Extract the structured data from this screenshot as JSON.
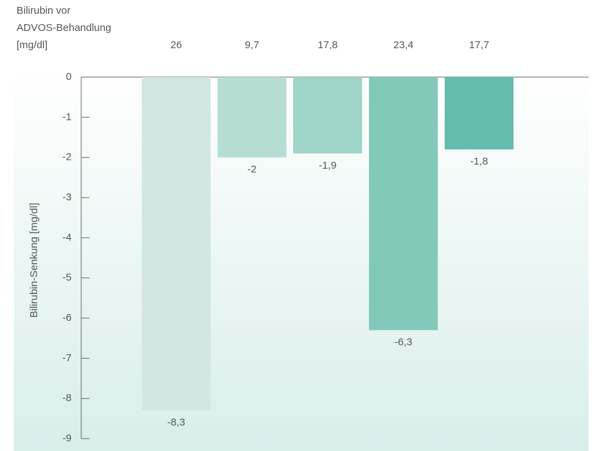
{
  "chart_data": {
    "type": "bar",
    "category_header": [
      "Bilirubin vor",
      "ADVOS-Behandlung",
      "[mg/dl]"
    ],
    "y_label": "Bilirubin-Senkung [mg/dl]",
    "categories": [
      "26",
      "9,7",
      "17,8",
      "23,4",
      "17,7"
    ],
    "values": [
      -8.3,
      -2,
      -1.9,
      -6.3,
      -1.8
    ],
    "value_labels": [
      "-8,3",
      "-2",
      "-1,9",
      "-6,3",
      "-1,8"
    ],
    "colors": [
      "#d2e7e3",
      "#b6ddd4",
      "#9fd4c8",
      "#83c9ba",
      "#66bcac"
    ],
    "ylim": [
      -9,
      0
    ],
    "yticks": [
      0,
      -1,
      -2,
      -3,
      -4,
      -5,
      -6,
      -7,
      -8,
      -9
    ]
  }
}
